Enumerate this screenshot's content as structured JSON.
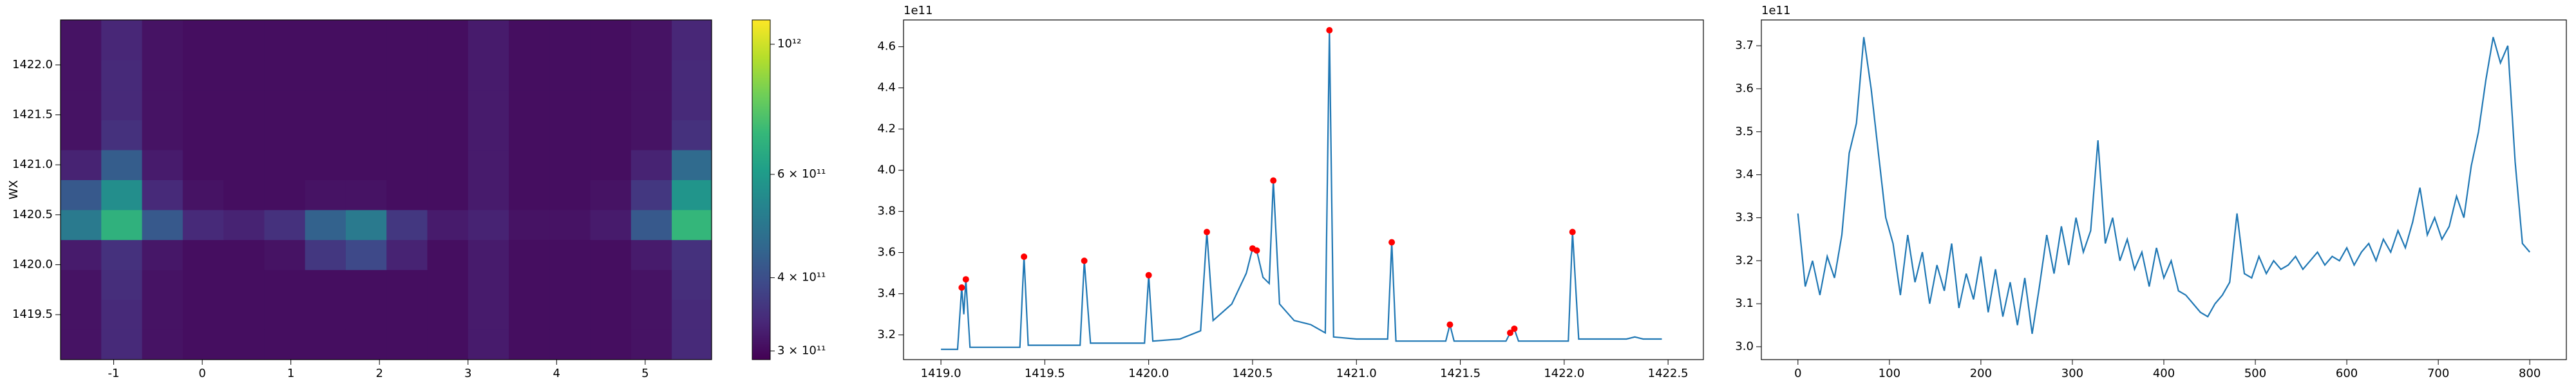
{
  "chart_data": [
    {
      "type": "heatmap",
      "ylabel": "WX",
      "colormap": "viridis",
      "cscale": "log",
      "xlim": [
        -1.6,
        5.75
      ],
      "ylim": [
        1419.05,
        1422.45
      ],
      "xticks": [
        -1,
        0,
        1,
        2,
        3,
        4,
        5
      ],
      "yticks": [
        {
          "value": 1419.5,
          "label": "1419.5"
        },
        {
          "value": 1420,
          "label": "1420.0"
        },
        {
          "value": 1420.5,
          "label": "1420.5"
        },
        {
          "value": 1421,
          "label": "1421.0"
        },
        {
          "value": 1421.5,
          "label": "1421.5"
        },
        {
          "value": 1422,
          "label": "1422.0"
        }
      ],
      "x_edges": [
        -1.6,
        -1.14,
        -0.68,
        -0.22,
        0.24,
        0.7,
        1.16,
        1.62,
        2.08,
        2.54,
        3.0,
        3.46,
        3.92,
        4.38,
        4.84,
        5.3,
        5.75
      ],
      "y_edges": [
        1419.05,
        1419.35,
        1419.65,
        1419.95,
        1420.25,
        1420.55,
        1420.85,
        1421.15,
        1421.45,
        1421.75,
        1422.05,
        1422.45
      ],
      "z": [
        [
          310000000000.0,
          340000000000.0,
          310000000000.0,
          305000000000.0,
          305000000000.0,
          305000000000.0,
          305000000000.0,
          305000000000.0,
          305000000000.0,
          305000000000.0,
          320000000000.0,
          305000000000.0,
          305000000000.0,
          305000000000.0,
          310000000000.0,
          340000000000.0
        ],
        [
          310000000000.0,
          340000000000.0,
          310000000000.0,
          305000000000.0,
          305000000000.0,
          305000000000.0,
          305000000000.0,
          305000000000.0,
          305000000000.0,
          305000000000.0,
          320000000000.0,
          305000000000.0,
          305000000000.0,
          305000000000.0,
          310000000000.0,
          340000000000.0
        ],
        [
          310000000000.0,
          345000000000.0,
          310000000000.0,
          305000000000.0,
          305000000000.0,
          305000000000.0,
          305000000000.0,
          305000000000.0,
          305000000000.0,
          305000000000.0,
          320000000000.0,
          305000000000.0,
          305000000000.0,
          305000000000.0,
          310000000000.0,
          345000000000.0
        ],
        [
          320000000000.0,
          350000000000.0,
          315000000000.0,
          305000000000.0,
          305000000000.0,
          310000000000.0,
          360000000000.0,
          390000000000.0,
          330000000000.0,
          305000000000.0,
          320000000000.0,
          305000000000.0,
          305000000000.0,
          305000000000.0,
          320000000000.0,
          350000000000.0
        ],
        [
          500000000000.0,
          680000000000.0,
          420000000000.0,
          340000000000.0,
          330000000000.0,
          350000000000.0,
          440000000000.0,
          500000000000.0,
          360000000000.0,
          320000000000.0,
          330000000000.0,
          310000000000.0,
          310000000000.0,
          320000000000.0,
          420000000000.0,
          700000000000.0
        ],
        [
          420000000000.0,
          560000000000.0,
          340000000000.0,
          310000000000.0,
          305000000000.0,
          305000000000.0,
          310000000000.0,
          310000000000.0,
          305000000000.0,
          305000000000.0,
          320000000000.0,
          305000000000.0,
          305000000000.0,
          310000000000.0,
          360000000000.0,
          580000000000.0
        ],
        [
          330000000000.0,
          430000000000.0,
          320000000000.0,
          305000000000.0,
          305000000000.0,
          305000000000.0,
          305000000000.0,
          305000000000.0,
          305000000000.0,
          305000000000.0,
          320000000000.0,
          305000000000.0,
          305000000000.0,
          305000000000.0,
          330000000000.0,
          460000000000.0
        ],
        [
          310000000000.0,
          350000000000.0,
          310000000000.0,
          305000000000.0,
          305000000000.0,
          305000000000.0,
          305000000000.0,
          305000000000.0,
          305000000000.0,
          305000000000.0,
          320000000000.0,
          305000000000.0,
          305000000000.0,
          305000000000.0,
          310000000000.0,
          350000000000.0
        ],
        [
          310000000000.0,
          340000000000.0,
          310000000000.0,
          305000000000.0,
          305000000000.0,
          305000000000.0,
          305000000000.0,
          305000000000.0,
          305000000000.0,
          305000000000.0,
          320000000000.0,
          305000000000.0,
          305000000000.0,
          305000000000.0,
          310000000000.0,
          340000000000.0
        ],
        [
          310000000000.0,
          340000000000.0,
          310000000000.0,
          305000000000.0,
          305000000000.0,
          305000000000.0,
          305000000000.0,
          305000000000.0,
          305000000000.0,
          305000000000.0,
          320000000000.0,
          305000000000.0,
          305000000000.0,
          305000000000.0,
          310000000000.0,
          340000000000.0
        ],
        [
          310000000000.0,
          335000000000.0,
          310000000000.0,
          305000000000.0,
          305000000000.0,
          305000000000.0,
          305000000000.0,
          305000000000.0,
          305000000000.0,
          305000000000.0,
          320000000000.0,
          305000000000.0,
          305000000000.0,
          305000000000.0,
          310000000000.0,
          335000000000.0
        ]
      ],
      "clim": [
        290000000000.0,
        1100000000000.0
      ],
      "cticks": [
        {
          "value": 300000000000.0,
          "label": "3 × 10¹¹"
        },
        {
          "value": 400000000000.0,
          "label": "4 × 10¹¹"
        },
        {
          "value": 600000000000.0,
          "label": "6 × 10¹¹"
        },
        {
          "value": 1000000000000.0,
          "label": "10¹²"
        }
      ]
    },
    {
      "type": "line",
      "offset_label": "1e11",
      "xlim": [
        1418.82,
        1422.67
      ],
      "ylim": [
        3.08,
        4.73
      ],
      "xticks": [
        {
          "value": 1419,
          "label": "1419.0"
        },
        1419.5,
        {
          "value": 1420,
          "label": "1420.0"
        },
        1420.5,
        {
          "value": 1421,
          "label": "1421.0"
        },
        1421.5,
        {
          "value": 1422,
          "label": "1422.0"
        },
        1422.5
      ],
      "yticks": [
        3.2,
        3.4,
        3.6,
        3.8,
        {
          "value": 4,
          "label": "4.0"
        },
        4.2,
        4.4,
        4.6
      ],
      "series": [
        {
          "style": "line",
          "color": "#1f77b4",
          "x": [
            1419.0,
            1419.08,
            1419.1,
            1419.11,
            1419.12,
            1419.14,
            1419.38,
            1419.4,
            1419.42,
            1419.67,
            1419.69,
            1419.72,
            1419.98,
            1420.0,
            1420.02,
            1420.15,
            1420.25,
            1420.28,
            1420.31,
            1420.4,
            1420.47,
            1420.5,
            1420.52,
            1420.55,
            1420.58,
            1420.6,
            1420.63,
            1420.7,
            1420.78,
            1420.85,
            1420.87,
            1420.89,
            1421.0,
            1421.15,
            1421.17,
            1421.19,
            1421.43,
            1421.45,
            1421.47,
            1421.72,
            1421.74,
            1421.76,
            1421.78,
            1422.02,
            1422.04,
            1422.07,
            1422.3,
            1422.34,
            1422.38,
            1422.47
          ],
          "values": [
            3.13,
            3.13,
            3.43,
            3.3,
            3.47,
            3.14,
            3.14,
            3.58,
            3.15,
            3.15,
            3.56,
            3.16,
            3.16,
            3.49,
            3.17,
            3.18,
            3.22,
            3.7,
            3.27,
            3.35,
            3.5,
            3.62,
            3.61,
            3.48,
            3.45,
            3.95,
            3.35,
            3.27,
            3.25,
            3.21,
            4.68,
            3.19,
            3.18,
            3.18,
            3.65,
            3.17,
            3.17,
            3.25,
            3.17,
            3.17,
            3.21,
            3.23,
            3.17,
            3.17,
            3.7,
            3.18,
            3.18,
            3.19,
            3.18,
            3.18
          ]
        },
        {
          "style": "markers",
          "color": "#ff0000",
          "x": [
            1419.1,
            1419.12,
            1419.4,
            1419.69,
            1420.0,
            1420.28,
            1420.5,
            1420.52,
            1420.6,
            1420.87,
            1421.17,
            1421.45,
            1421.74,
            1421.76,
            1422.04
          ],
          "values": [
            3.43,
            3.47,
            3.58,
            3.56,
            3.49,
            3.7,
            3.62,
            3.61,
            3.95,
            4.68,
            3.65,
            3.25,
            3.21,
            3.23,
            3.7
          ]
        }
      ]
    },
    {
      "type": "line",
      "offset_label": "1e11",
      "xlim": [
        -40,
        840
      ],
      "ylim": [
        2.97,
        3.76
      ],
      "xticks": [
        0,
        100,
        200,
        300,
        400,
        500,
        600,
        700,
        800
      ],
      "yticks": [
        {
          "value": 3,
          "label": "3.0"
        },
        3.1,
        3.2,
        3.3,
        3.4,
        3.5,
        3.6,
        3.7
      ],
      "series": [
        {
          "style": "line",
          "color": "#1f77b4",
          "x": [
            0,
            8,
            16,
            24,
            32,
            40,
            48,
            56,
            64,
            72,
            80,
            88,
            96,
            104,
            112,
            120,
            128,
            136,
            144,
            152,
            160,
            168,
            176,
            184,
            192,
            200,
            208,
            216,
            224,
            232,
            240,
            248,
            256,
            264,
            272,
            280,
            288,
            296,
            304,
            312,
            320,
            328,
            336,
            344,
            352,
            360,
            368,
            376,
            384,
            392,
            400,
            408,
            416,
            424,
            432,
            440,
            448,
            456,
            464,
            472,
            480,
            488,
            496,
            504,
            512,
            520,
            528,
            536,
            544,
            552,
            560,
            568,
            576,
            584,
            592,
            600,
            608,
            616,
            624,
            632,
            640,
            648,
            656,
            664,
            672,
            680,
            688,
            696,
            704,
            712,
            720,
            728,
            736,
            744,
            752,
            760,
            768,
            776,
            784,
            792,
            800
          ],
          "values": [
            3.31,
            3.14,
            3.2,
            3.12,
            3.21,
            3.16,
            3.26,
            3.45,
            3.52,
            3.72,
            3.6,
            3.45,
            3.3,
            3.24,
            3.12,
            3.26,
            3.15,
            3.22,
            3.1,
            3.19,
            3.13,
            3.24,
            3.09,
            3.17,
            3.11,
            3.21,
            3.08,
            3.18,
            3.07,
            3.15,
            3.05,
            3.16,
            3.03,
            3.14,
            3.26,
            3.17,
            3.28,
            3.19,
            3.3,
            3.22,
            3.27,
            3.48,
            3.24,
            3.3,
            3.2,
            3.25,
            3.18,
            3.22,
            3.14,
            3.23,
            3.16,
            3.2,
            3.13,
            3.12,
            3.1,
            3.08,
            3.07,
            3.1,
            3.12,
            3.15,
            3.31,
            3.17,
            3.16,
            3.21,
            3.17,
            3.2,
            3.18,
            3.19,
            3.21,
            3.18,
            3.2,
            3.22,
            3.19,
            3.21,
            3.2,
            3.23,
            3.19,
            3.22,
            3.24,
            3.2,
            3.25,
            3.22,
            3.27,
            3.23,
            3.29,
            3.37,
            3.26,
            3.3,
            3.25,
            3.28,
            3.35,
            3.3,
            3.42,
            3.5,
            3.62,
            3.72,
            3.66,
            3.7,
            3.43,
            3.24,
            3.22
          ]
        }
      ]
    }
  ]
}
